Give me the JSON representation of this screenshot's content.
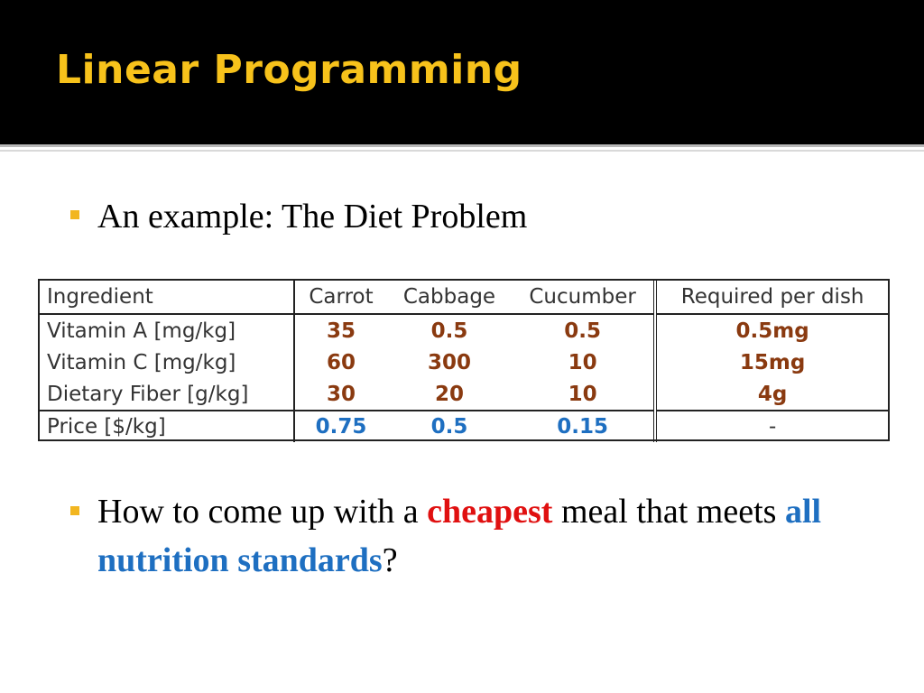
{
  "slide": {
    "title": "Linear Programming",
    "title_color": "#f7c21b",
    "bullets": [
      {
        "text": "An example: The Diet Problem"
      },
      {
        "pre": "How to come up with a ",
        "kw1": "cheapest",
        "mid": " meal that meets ",
        "kw2": "all nutrition standards",
        "post": "?"
      }
    ],
    "bullet_color": "#f2b620"
  },
  "table": {
    "headers": [
      "Ingredient",
      "Carrot",
      "Cabbage",
      "Cucumber",
      "Required per dish"
    ],
    "rows": [
      [
        "Vitamin A [mg/kg]",
        "35",
        "0.5",
        "0.5",
        "0.5mg"
      ],
      [
        "Vitamin C [mg/kg]",
        "60",
        "300",
        "10",
        "15mg"
      ],
      [
        "Dietary Fiber [g/kg]",
        "30",
        "20",
        "10",
        "4g"
      ]
    ],
    "price_row": [
      "Price [$/kg]",
      "0.75",
      "0.5",
      "0.15",
      "-"
    ]
  }
}
